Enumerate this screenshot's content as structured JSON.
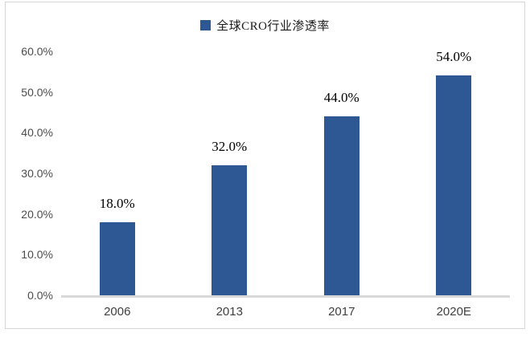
{
  "chart_data": {
    "type": "bar",
    "legend": "全球CRO行业渗透率",
    "categories": [
      "2006",
      "2013",
      "2017",
      "2020E"
    ],
    "values": [
      18.0,
      32.0,
      44.0,
      54.0
    ],
    "data_labels": [
      "18.0%",
      "32.0%",
      "44.0%",
      "54.0%"
    ],
    "y_ticks": [
      "0.0%",
      "10.0%",
      "20.0%",
      "30.0%",
      "40.0%",
      "50.0%",
      "60.0%"
    ],
    "y_tick_values": [
      0,
      10,
      20,
      30,
      40,
      50,
      60
    ],
    "ylim": [
      0,
      60
    ],
    "title": "",
    "xlabel": "",
    "ylabel": "",
    "grid": "off",
    "legend_position": "top-center",
    "bar_color": "#2e5894",
    "axis_line_color": "#d9d9d9",
    "frame_border_color": "#d6d6d6"
  }
}
